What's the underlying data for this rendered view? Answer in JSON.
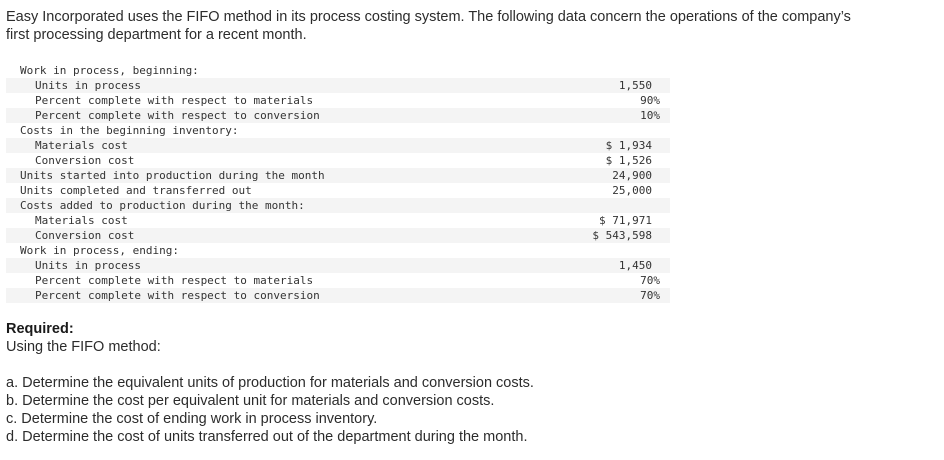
{
  "intro": {
    "line1": "Easy Incorporated uses the FIFO method in its process costing system. The following data concern the operations of the company’s",
    "line2": "first processing department for a recent month."
  },
  "table": {
    "rows": [
      {
        "label": "Work in process, beginning:",
        "value": "",
        "indent": false
      },
      {
        "label": "Units in process",
        "value": "1,550",
        "indent": true
      },
      {
        "label": "Percent complete with respect to materials",
        "value": "90%",
        "indent": true
      },
      {
        "label": "Percent complete with respect to conversion",
        "value": "10%",
        "indent": true
      },
      {
        "label": "Costs in the beginning inventory:",
        "value": "",
        "indent": false
      },
      {
        "label": "Materials cost",
        "value": "$ 1,934",
        "indent": true
      },
      {
        "label": "Conversion cost",
        "value": "$ 1,526",
        "indent": true
      },
      {
        "label": "Units started into production during the month",
        "value": "24,900",
        "indent": false
      },
      {
        "label": "Units completed and transferred out",
        "value": "25,000",
        "indent": false
      },
      {
        "label": "Costs added to production during the month:",
        "value": "",
        "indent": false
      },
      {
        "label": "Materials cost",
        "value": "$ 71,971",
        "indent": true
      },
      {
        "label": "Conversion cost",
        "value": "$ 543,598",
        "indent": true
      },
      {
        "label": "Work in process, ending:",
        "value": "",
        "indent": false
      },
      {
        "label": "Units in process",
        "value": "1,450",
        "indent": true
      },
      {
        "label": "Percent complete with respect to materials",
        "value": "70%",
        "indent": true
      },
      {
        "label": "Percent complete with respect to conversion",
        "value": "70%",
        "indent": true
      }
    ]
  },
  "required": {
    "title": "Required:",
    "subtitle": "Using the FIFO method:",
    "tasks": [
      "a. Determine the equivalent units of production for materials and conversion costs.",
      "b. Determine the cost per equivalent unit for materials and conversion costs.",
      "c. Determine the cost of ending work in process inventory.",
      "d. Determine the cost of units transferred out of the department during the month."
    ]
  }
}
